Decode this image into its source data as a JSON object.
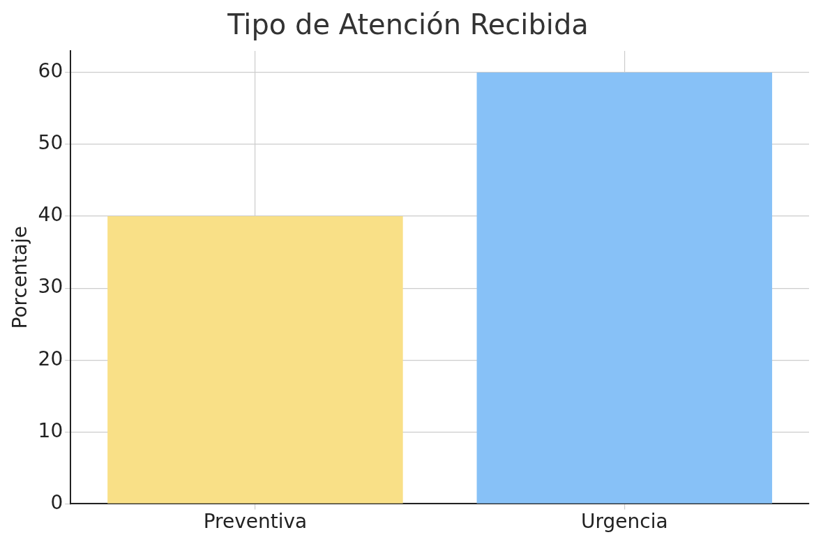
{
  "chart_data": {
    "type": "bar",
    "title": "Tipo de Atención Recibida",
    "ylabel": "Porcentaje",
    "categories": [
      "Preventiva",
      "Urgencia"
    ],
    "values": [
      40,
      60
    ],
    "colors": [
      "#f9e087",
      "#87c1f7"
    ],
    "ylim": [
      0,
      63
    ],
    "yticks": [
      0,
      10,
      20,
      30,
      40,
      50,
      60
    ],
    "grid": true
  }
}
